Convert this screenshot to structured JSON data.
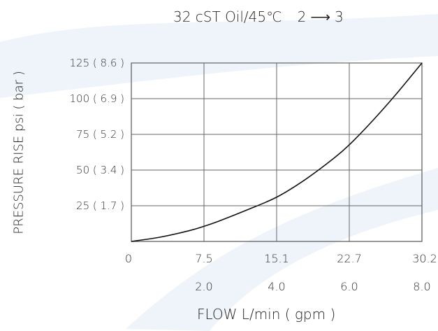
{
  "chart_data": {
    "type": "line",
    "title": "32 cST Oil/45℃",
    "flow_label_from": "2",
    "flow_label_to": "3",
    "xlabel": "FLOW L/min ( gpm )",
    "ylabel": "PRESSURE RISE psi ( bar )",
    "x_ticks_lpm": [
      "0",
      "7.5",
      "15.1",
      "22.7",
      "30.2"
    ],
    "x_ticks_gpm": [
      "2.0",
      "4.0",
      "6.0",
      "8.0"
    ],
    "y_ticks": [
      "25 ( 1.7 )",
      "50 ( 3.4 )",
      "75 ( 5.2 )",
      "100 ( 6.9 )",
      "125 ( 8.6 )"
    ],
    "xlim": [
      0,
      30.2
    ],
    "ylim": [
      0,
      125
    ],
    "grid": true,
    "series": [
      {
        "x": [
          0,
          3,
          6,
          7.5,
          9,
          12,
          15.1,
          18,
          21,
          22.7,
          25,
          27.5,
          30.2
        ],
        "y": [
          0,
          3,
          7.5,
          10.5,
          14,
          22,
          31,
          43,
          58,
          68,
          84,
          103,
          125
        ]
      }
    ]
  }
}
